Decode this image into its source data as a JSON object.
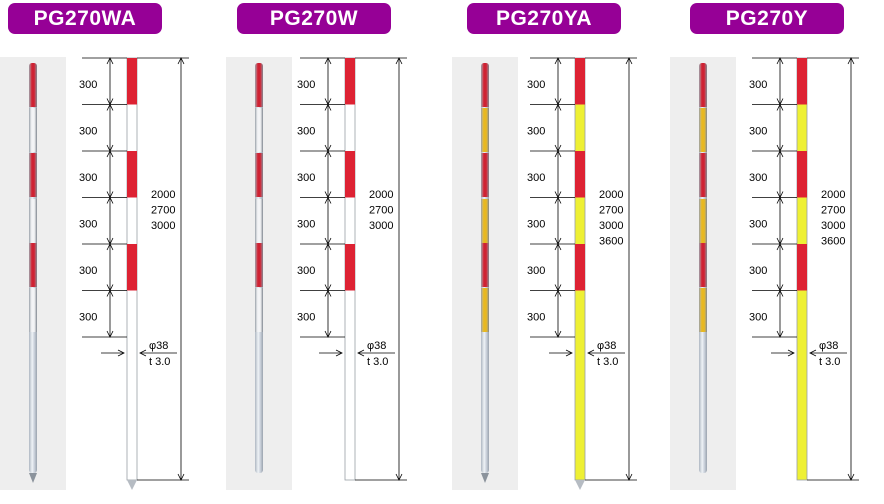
{
  "colors": {
    "badge": "#960096",
    "red": "#dd2233",
    "white": "#ffffff",
    "yellow": "#eef034",
    "photo_bg": "#eeeeee",
    "metal": "#c8cfd8"
  },
  "segment_length_label": "300",
  "models": [
    {
      "name": "PG270WA",
      "secondary": "white",
      "has_tip": true,
      "band_count": 6,
      "lengths": [
        "2000",
        "2700",
        "3000"
      ],
      "diameter": "φ38",
      "thickness": "t 3.0"
    },
    {
      "name": "PG270W",
      "secondary": "white",
      "has_tip": false,
      "band_count": 6,
      "lengths": [
        "2000",
        "2700",
        "3000"
      ],
      "diameter": "φ38",
      "thickness": "t 3.0"
    },
    {
      "name": "PG270YA",
      "secondary": "yellow",
      "has_tip": true,
      "band_count": 6,
      "lengths": [
        "2000",
        "2700",
        "3000",
        "3600"
      ],
      "diameter": "φ38",
      "thickness": "t 3.0"
    },
    {
      "name": "PG270Y",
      "secondary": "yellow",
      "has_tip": false,
      "band_count": 6,
      "lengths": [
        "2000",
        "2700",
        "3000",
        "3600"
      ],
      "diameter": "φ38",
      "thickness": "t 3.0"
    }
  ]
}
